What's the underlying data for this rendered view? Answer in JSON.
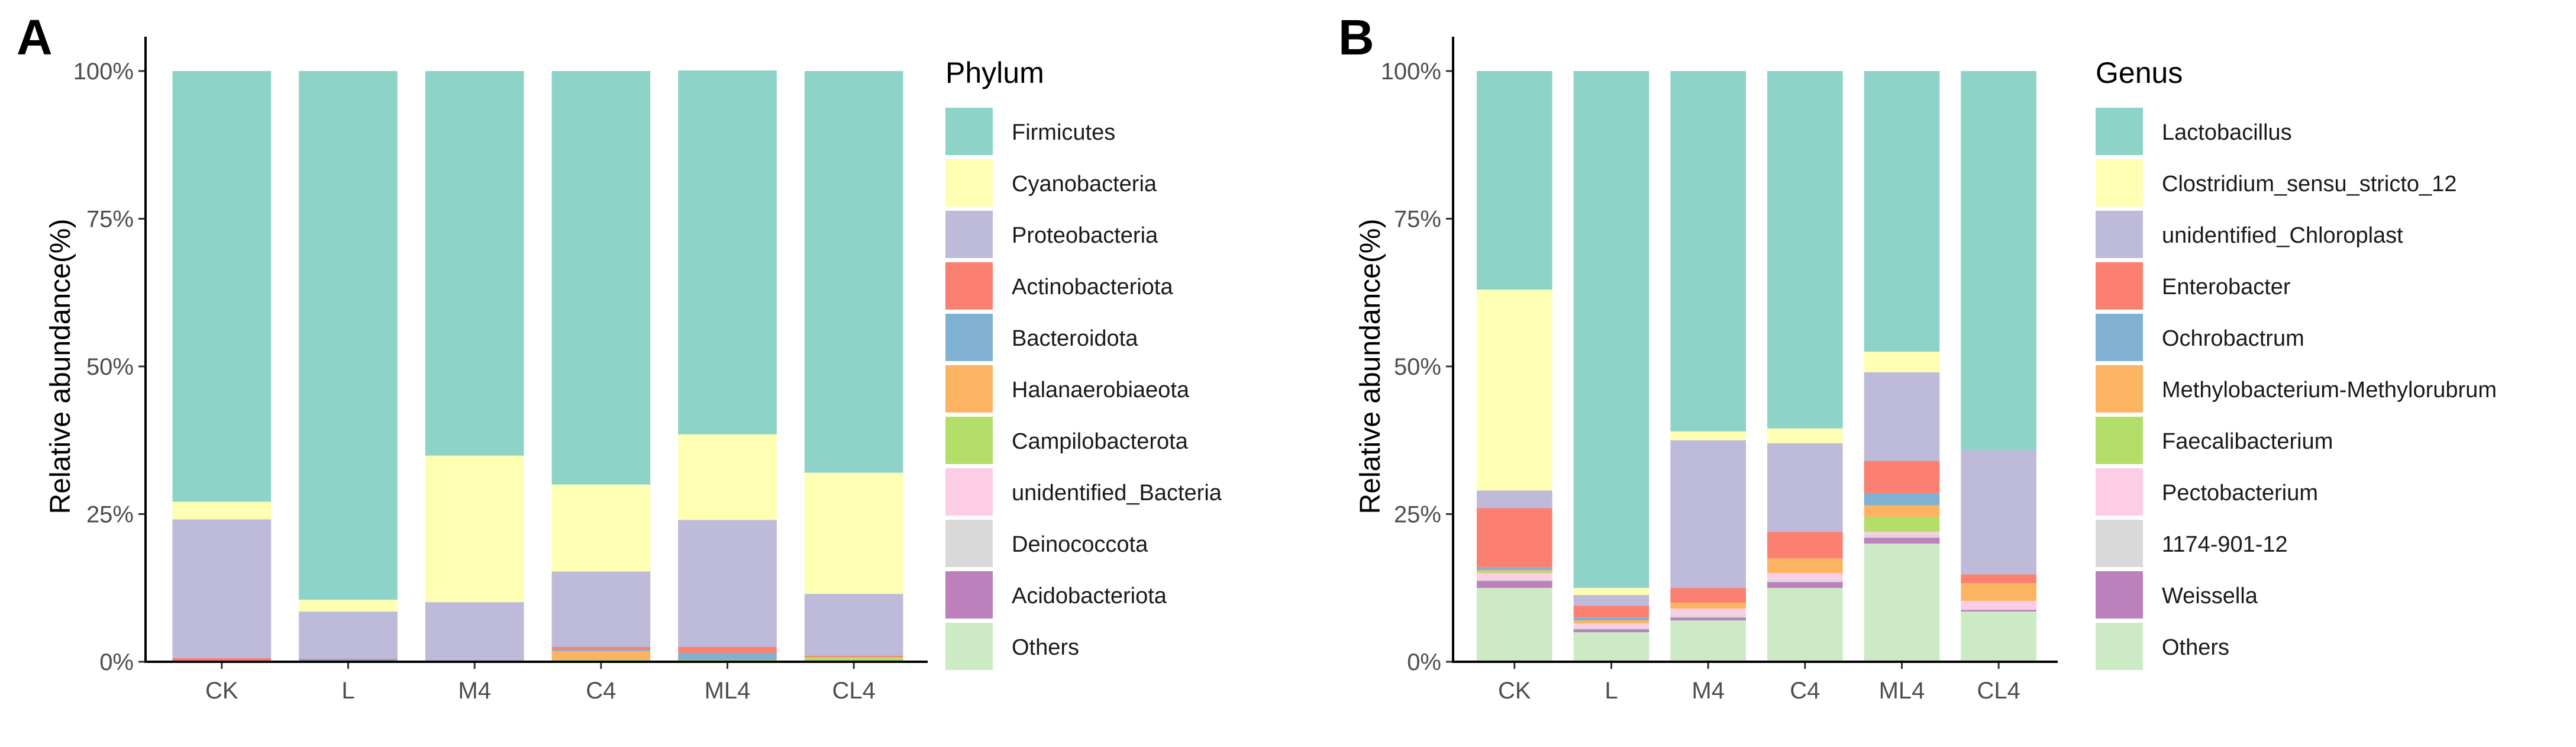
{
  "chart_data": [
    {
      "type": "bar",
      "stacked": true,
      "panel_label": "A",
      "ylabel": "Relative abundance(%)",
      "xlabel": "",
      "ylim": [
        0,
        100
      ],
      "yticks": [
        "0%",
        "25%",
        "50%",
        "75%",
        "100%"
      ],
      "ytick_values": [
        0,
        25,
        50,
        75,
        100
      ],
      "legend_title": "Phylum",
      "legend_position": "right",
      "categories": [
        "CK",
        "L",
        "M4",
        "C4",
        "ML4",
        "CL4"
      ],
      "series": [
        {
          "name": "Others",
          "color": "#ccebc5",
          "values": [
            0.1,
            0.1,
            0.1,
            0.1,
            0.1,
            0.2
          ]
        },
        {
          "name": "Acidobacteriota",
          "color": "#bc80bd",
          "values": [
            0,
            0,
            0,
            0,
            0,
            0
          ]
        },
        {
          "name": "Deinococcota",
          "color": "#d9d9d9",
          "values": [
            0,
            0,
            0,
            0,
            0,
            0
          ]
        },
        {
          "name": "unidentified_Bacteria",
          "color": "#fccde5",
          "values": [
            0,
            0,
            0,
            0,
            0,
            0
          ]
        },
        {
          "name": "Campilobacterota",
          "color": "#b3de69",
          "values": [
            0,
            0,
            0,
            0.2,
            0.2,
            0.6
          ]
        },
        {
          "name": "Halanaerobiaeota",
          "color": "#fdb462",
          "values": [
            0,
            0,
            0,
            1.5,
            0,
            0
          ]
        },
        {
          "name": "Bacteroidota",
          "color": "#80b1d3",
          "values": [
            0,
            0.3,
            0,
            0.2,
            1.2,
            0
          ]
        },
        {
          "name": "Actinobacteriota",
          "color": "#fb8072",
          "values": [
            0.5,
            0.1,
            0,
            0.5,
            1.0,
            0.2
          ]
        },
        {
          "name": "Proteobacteria",
          "color": "#bebada",
          "values": [
            23.5,
            8.0,
            10.0,
            12.8,
            21.5,
            10.5
          ]
        },
        {
          "name": "Cyanobacteria",
          "color": "#ffffb3",
          "values": [
            3.0,
            2.0,
            24.8,
            14.7,
            14.5,
            20.5
          ]
        },
        {
          "name": "Firmicutes",
          "color": "#8dd3c7",
          "values": [
            72.9,
            89.5,
            65.1,
            70.0,
            61.6,
            68.0
          ]
        }
      ],
      "legend_entries": [
        {
          "name": "Firmicutes",
          "color": "#8dd3c7"
        },
        {
          "name": "Cyanobacteria",
          "color": "#ffffb3"
        },
        {
          "name": "Proteobacteria",
          "color": "#bebada"
        },
        {
          "name": "Actinobacteriota",
          "color": "#fb8072"
        },
        {
          "name": "Bacteroidota",
          "color": "#80b1d3"
        },
        {
          "name": "Halanaerobiaeota",
          "color": "#fdb462"
        },
        {
          "name": "Campilobacterota",
          "color": "#b3de69"
        },
        {
          "name": "unidentified_Bacteria",
          "color": "#fccde5"
        },
        {
          "name": "Deinococcota",
          "color": "#d9d9d9"
        },
        {
          "name": "Acidobacteriota",
          "color": "#bc80bd"
        },
        {
          "name": "Others",
          "color": "#ccebc5"
        }
      ]
    },
    {
      "type": "bar",
      "stacked": true,
      "panel_label": "B",
      "ylabel": "Relative abundance(%)",
      "xlabel": "",
      "ylim": [
        0,
        100
      ],
      "yticks": [
        "0%",
        "25%",
        "50%",
        "75%",
        "100%"
      ],
      "ytick_values": [
        0,
        25,
        50,
        75,
        100
      ],
      "legend_title": "Genus",
      "legend_position": "right",
      "categories": [
        "CK",
        "L",
        "M4",
        "C4",
        "ML4",
        "CL4"
      ],
      "series": [
        {
          "name": "Others",
          "color": "#ccebc5",
          "values": [
            12.5,
            5.0,
            7.0,
            12.5,
            20.0,
            8.5
          ]
        },
        {
          "name": "Weissella",
          "color": "#bc80bd",
          "values": [
            1.2,
            0.5,
            0.5,
            1.0,
            1.0,
            0.3
          ]
        },
        {
          "name": "1174-901-12",
          "color": "#d9d9d9",
          "values": [
            0.3,
            0.3,
            0.5,
            0.5,
            0.5,
            0
          ]
        },
        {
          "name": "Pectobacterium",
          "color": "#fccde5",
          "values": [
            1.0,
            0.7,
            1.0,
            1.0,
            0.5,
            1.5
          ]
        },
        {
          "name": "Faecalibacterium",
          "color": "#b3de69",
          "values": [
            0.2,
            0,
            0,
            0,
            2.5,
            0
          ]
        },
        {
          "name": "Methylobacterium-Methylorubrum",
          "color": "#fdb462",
          "values": [
            0.3,
            0.5,
            1.0,
            2.5,
            2.0,
            3.0
          ]
        },
        {
          "name": "Ochrobactrum",
          "color": "#80b1d3",
          "values": [
            0.5,
            0.5,
            0,
            0,
            2.0,
            0
          ]
        },
        {
          "name": "Enterobacter",
          "color": "#fb8072",
          "values": [
            10.0,
            2.0,
            2.5,
            4.5,
            5.5,
            1.5
          ]
        },
        {
          "name": "unidentified_Chloroplast",
          "color": "#bebada",
          "values": [
            3.0,
            1.8,
            25.0,
            15.0,
            15.0,
            21.0
          ]
        },
        {
          "name": "Clostridium_sensu_stricto_12",
          "color": "#ffffb3",
          "values": [
            34.0,
            1.2,
            1.5,
            2.5,
            3.5,
            0
          ]
        },
        {
          "name": "Lactobacillus",
          "color": "#8dd3c7",
          "values": [
            37.0,
            87.5,
            61.0,
            60.5,
            47.5,
            64.2
          ]
        }
      ],
      "legend_entries": [
        {
          "name": "Lactobacillus",
          "color": "#8dd3c7"
        },
        {
          "name": "Clostridium_sensu_stricto_12",
          "color": "#ffffb3"
        },
        {
          "name": "unidentified_Chloroplast",
          "color": "#bebada"
        },
        {
          "name": "Enterobacter",
          "color": "#fb8072"
        },
        {
          "name": "Ochrobactrum",
          "color": "#80b1d3"
        },
        {
          "name": "Methylobacterium-Methylorubrum",
          "color": "#fdb462"
        },
        {
          "name": "Faecalibacterium",
          "color": "#b3de69"
        },
        {
          "name": "Pectobacterium",
          "color": "#fccde5"
        },
        {
          "name": "1174-901-12",
          "color": "#d9d9d9"
        },
        {
          "name": "Weissella",
          "color": "#bc80bd"
        },
        {
          "name": "Others",
          "color": "#ccebc5"
        }
      ]
    }
  ]
}
